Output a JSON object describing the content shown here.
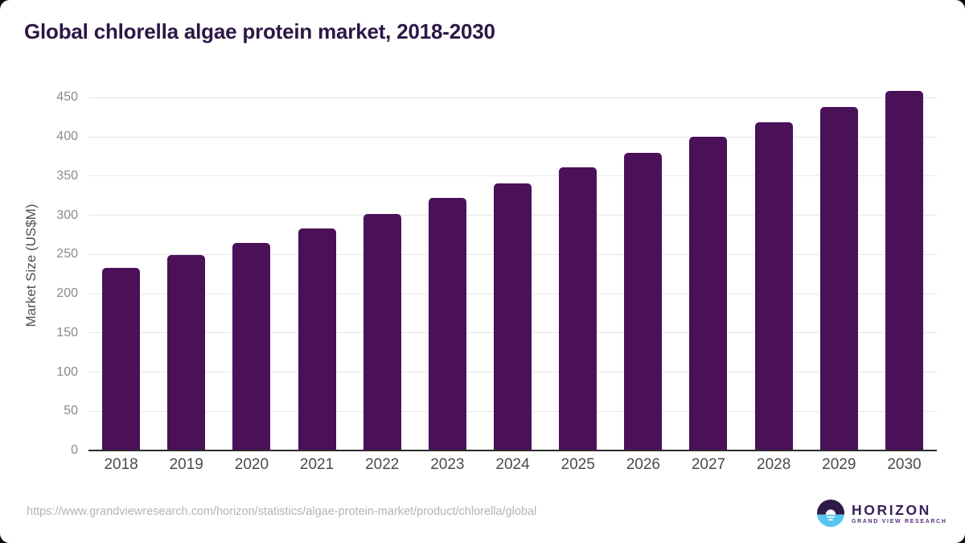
{
  "chart_data": {
    "type": "bar",
    "title": "Global chlorella algae protein market, 2018-2030",
    "categories": [
      "2018",
      "2019",
      "2020",
      "2021",
      "2022",
      "2023",
      "2024",
      "2025",
      "2026",
      "2027",
      "2028",
      "2029",
      "2030"
    ],
    "values": [
      233,
      249,
      265,
      283,
      302,
      322,
      341,
      361,
      380,
      400,
      419,
      438,
      459
    ],
    "xlabel": "",
    "ylabel": "Market Size (US$M)",
    "ylim": [
      0,
      450
    ],
    "ytick_step": 50,
    "yticks": [
      0,
      50,
      100,
      150,
      200,
      250,
      300,
      350,
      400,
      450
    ],
    "grid": true,
    "legend": false,
    "bar_color": "#4a1159"
  },
  "footer": {
    "source_url": "https://www.grandviewresearch.com/horizon/statistics/algae-protein-market/product/chlorella/global",
    "logo": {
      "name": "HORIZON",
      "subtitle": "GRAND VIEW RESEARCH"
    }
  },
  "colors": {
    "bar": "#4a1159",
    "title": "#2d1745",
    "axis-label": "#4f4f4f",
    "tick-label": "#8a8a8a",
    "grid": "#e7e7e7",
    "baseline": "#2b2b2b",
    "url": "#b4b4b4",
    "logo-dark": "#2e1a47",
    "logo-blue": "#56c5f2",
    "logo-text": "#362258",
    "logo-subtext": "#52307c",
    "card-bg": "#ffffff",
    "page-bg": "#0d0d0d"
  }
}
